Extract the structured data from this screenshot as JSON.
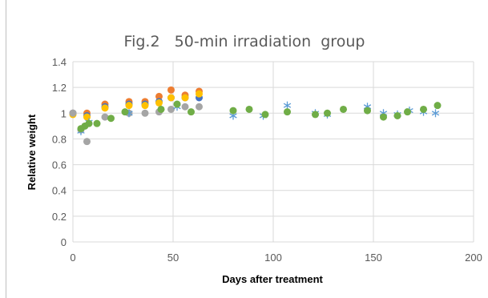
{
  "chart_data": {
    "type": "scatter",
    "title": "Fig.2   50-min irradiation  group",
    "xlabel": "Days after treatment",
    "ylabel": "Relative weight",
    "xlim": [
      0,
      200
    ],
    "ylim": [
      0,
      1.4
    ],
    "x_ticks": [
      "0",
      "50",
      "100",
      "150",
      "200"
    ],
    "y_ticks": [
      "0",
      "0.2",
      "0.4",
      "0.6",
      "0.8",
      "1",
      "1.2",
      "1.4"
    ],
    "grid": "major gridlines on both axes",
    "legend": "none",
    "series": [
      {
        "color": "#ED7D31",
        "marker": "circle",
        "x": [
          0,
          7,
          16,
          28,
          36,
          43,
          49,
          56,
          63
        ],
        "y": [
          1.0,
          1.0,
          1.07,
          1.09,
          1.09,
          1.13,
          1.18,
          1.14,
          1.17
        ]
      },
      {
        "color": "#4472C4",
        "marker": "circle",
        "x": [
          0,
          7,
          16,
          28,
          36,
          43,
          49,
          56,
          63
        ],
        "y": [
          1.0,
          0.98,
          1.05,
          1.07,
          1.07,
          1.09,
          1.12,
          1.12,
          1.12
        ]
      },
      {
        "color": "#FFC000",
        "marker": "circle",
        "x": [
          0,
          7,
          16,
          28,
          36,
          43,
          49,
          56,
          63
        ],
        "y": [
          0.99,
          0.97,
          1.04,
          1.06,
          1.06,
          1.08,
          1.12,
          1.12,
          1.15
        ]
      },
      {
        "color": "#A5A5A5",
        "marker": "circle",
        "x": [
          0,
          4,
          7,
          16,
          28,
          36,
          43,
          49,
          56,
          63
        ],
        "y": [
          1.0,
          0.87,
          0.78,
          0.97,
          1.0,
          1.0,
          1.01,
          1.03,
          1.05,
          1.05
        ]
      },
      {
        "color": "#5B9BD5",
        "marker": "asterisk",
        "x": [
          4,
          8,
          28,
          52,
          80,
          95,
          107,
          121,
          127,
          147,
          155,
          162,
          168,
          175,
          181
        ],
        "y": [
          0.86,
          0.93,
          1.0,
          1.05,
          0.98,
          0.98,
          1.06,
          1.0,
          0.99,
          1.05,
          1.0,
          0.99,
          1.02,
          1.01,
          1.0
        ]
      },
      {
        "color": "#70AD47",
        "marker": "circle",
        "x": [
          4,
          6,
          8,
          12,
          19,
          26,
          44,
          52,
          59,
          80,
          88,
          96,
          107,
          121,
          127,
          135,
          147,
          155,
          162,
          167,
          175,
          182
        ],
        "y": [
          0.88,
          0.9,
          0.92,
          0.92,
          0.96,
          1.01,
          1.03,
          1.07,
          1.01,
          1.02,
          1.03,
          0.99,
          1.01,
          0.99,
          1.0,
          1.03,
          1.02,
          0.97,
          0.98,
          1.01,
          1.03,
          1.06
        ]
      }
    ]
  }
}
